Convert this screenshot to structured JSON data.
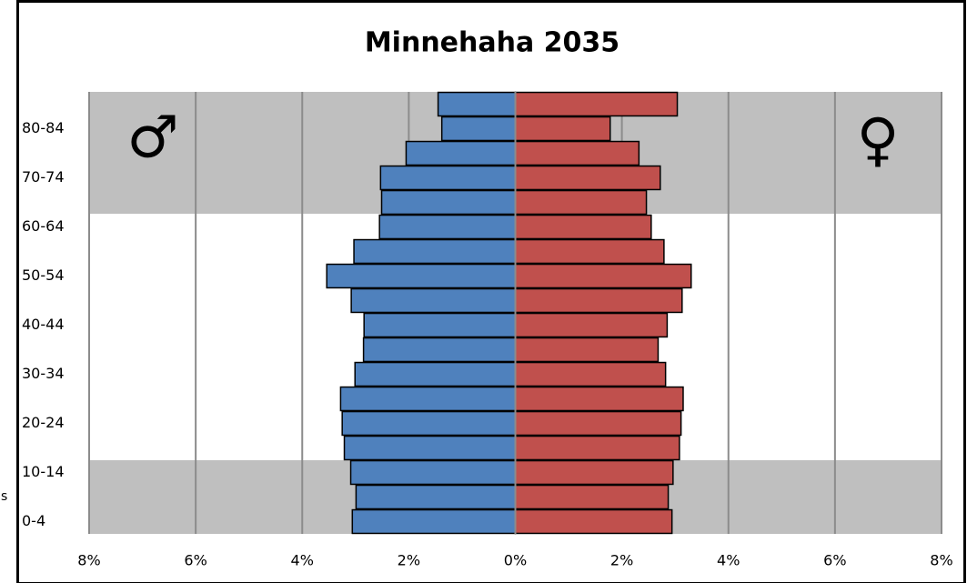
{
  "chart_data": {
    "type": "pyramid",
    "title": "Minnehaha 2035",
    "categories": [
      "0-4",
      null,
      "10-14",
      null,
      "20-24",
      null,
      "30-34",
      null,
      "40-44",
      null,
      "50-54",
      null,
      "60-64",
      null,
      "70-74",
      null,
      "80-84",
      null
    ],
    "series": [
      {
        "name": "♂",
        "color": "#4f81bd",
        "values": [
          -3.06,
          -2.99,
          -3.09,
          -3.21,
          -3.25,
          -3.28,
          -3.01,
          -2.85,
          -2.84,
          -3.08,
          -3.54,
          -3.03,
          -2.55,
          -2.51,
          -2.53,
          -2.05,
          -1.38,
          -1.45
        ]
      },
      {
        "name": "♀",
        "color": "#c0504d",
        "values": [
          2.94,
          2.87,
          2.96,
          3.08,
          3.11,
          3.15,
          2.82,
          2.68,
          2.85,
          3.13,
          3.3,
          2.79,
          2.55,
          2.46,
          2.72,
          2.32,
          1.78,
          3.04
        ]
      }
    ],
    "xlim": [
      -8,
      8
    ],
    "xticks": [
      {
        "value": -8,
        "label": "8%"
      },
      {
        "value": -6,
        "label": "6%"
      },
      {
        "value": -4,
        "label": "4%"
      },
      {
        "value": -2,
        "label": "2%"
      },
      {
        "value": 0,
        "label": "0%"
      },
      {
        "value": 2,
        "label": "2%"
      },
      {
        "value": 4,
        "label": "4%"
      },
      {
        "value": 6,
        "label": "6%"
      },
      {
        "value": 8,
        "label": "8%"
      }
    ],
    "grid": true,
    "annotation": "s"
  }
}
